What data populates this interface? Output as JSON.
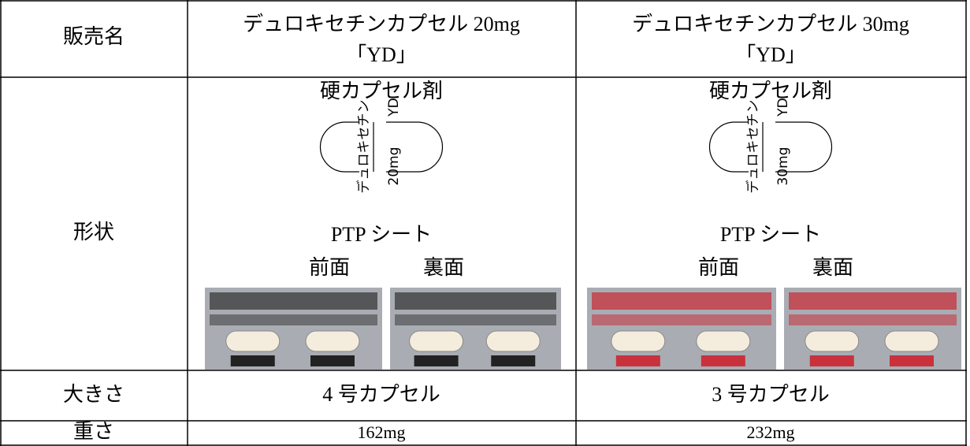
{
  "table": {
    "header": {
      "label": "販売名",
      "products": [
        [
          "デュロキセチンカプセル 20mg",
          "「YD」"
        ],
        [
          "デュロキセチンカプセル 30mg",
          "「YD」"
        ]
      ]
    },
    "shape": {
      "label": "形状",
      "products": [
        {
          "form": "硬カプセル剤",
          "imprint_left": "デュロキセチン",
          "imprint_top": "YD",
          "imprint_bottom": "20mg",
          "ptp": "PTP シート",
          "front": "前面",
          "back": "裏面"
        },
        {
          "form": "硬カプセル剤",
          "imprint_left": "デュロキセチン",
          "imprint_top": "YD",
          "imprint_bottom": "30mg",
          "ptp": "PTP シート",
          "front": "前面",
          "back": "裏面"
        }
      ]
    },
    "size": {
      "label": "大きさ",
      "products": [
        "4 号カプセル",
        "3 号カプセル"
      ]
    },
    "weight": {
      "label": "重さ",
      "products": [
        "162mg",
        "232mg"
      ]
    }
  }
}
